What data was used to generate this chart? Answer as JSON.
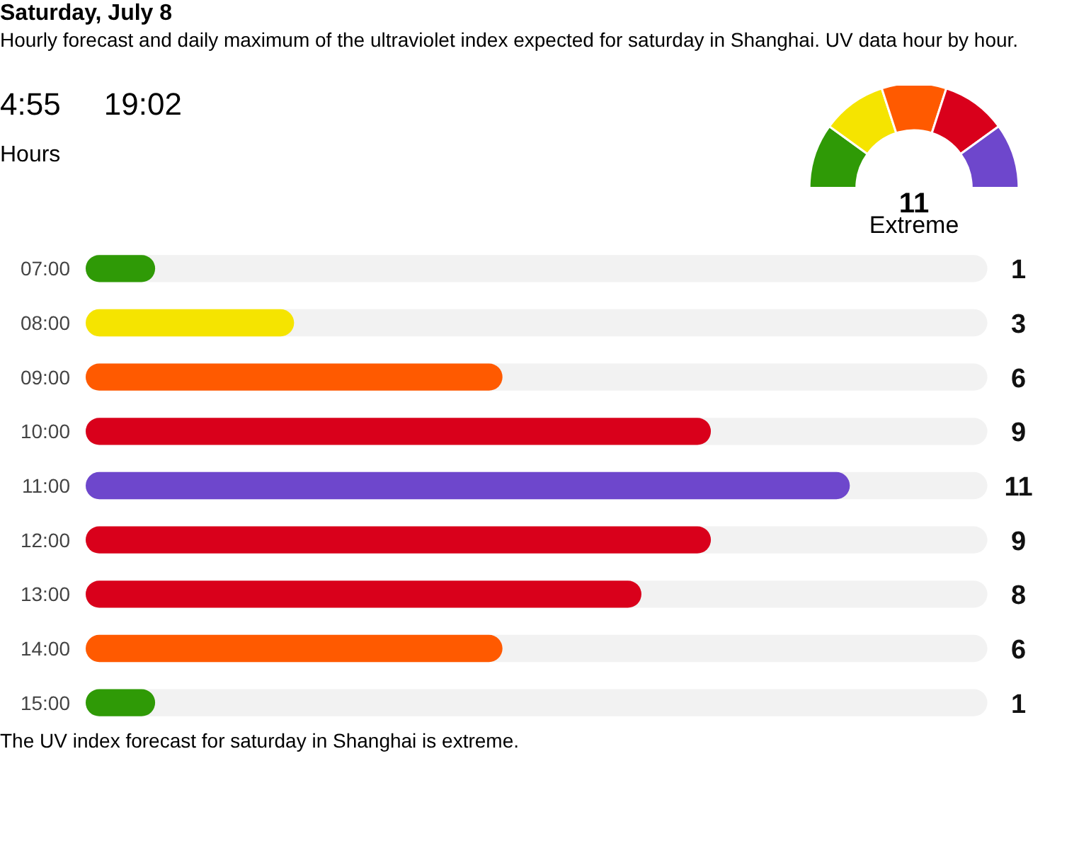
{
  "chart_data": [
    {
      "type": "bar",
      "orientation": "horizontal",
      "title": "Saturday, July 8",
      "subtitle": "Hourly forecast and daily maximum of the ultraviolet index expected for saturday in Shanghai. UV data hour by hour.",
      "ylabel": "Hours",
      "categories": [
        "07:00",
        "08:00",
        "09:00",
        "10:00",
        "11:00",
        "12:00",
        "13:00",
        "14:00",
        "15:00"
      ],
      "values": [
        1,
        3,
        6,
        9,
        11,
        9,
        8,
        6,
        1
      ],
      "colors": [
        "#2f9a06",
        "#f5e400",
        "#ff5a00",
        "#d9001b",
        "#6e47cc",
        "#d9001b",
        "#d9001b",
        "#ff5a00",
        "#2f9a06"
      ],
      "data_labels": true,
      "tick_labels": "y",
      "annotations": [
        "4:55",
        "19:02",
        "The UV index forecast for saturday in Shanghai is extreme."
      ]
    },
    {
      "type": "donut",
      "categories": [
        null,
        null,
        null,
        null,
        null
      ],
      "values": [
        20,
        20,
        20,
        20,
        20
      ],
      "colors": [
        "#2f9a06",
        "#f5e400",
        "#ff5a00",
        "#d9001b",
        "#6e47cc"
      ],
      "annotations": [
        "11",
        "Extreme"
      ]
    }
  ]
}
